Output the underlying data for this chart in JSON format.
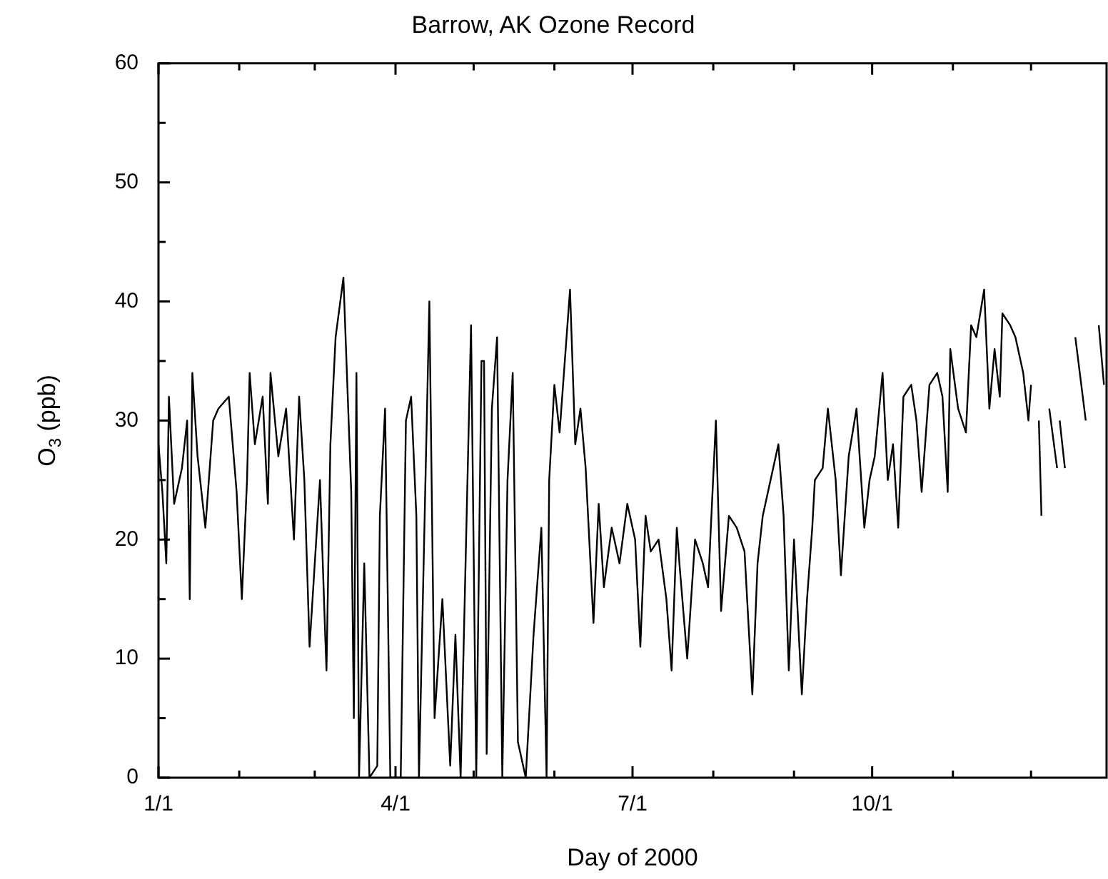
{
  "chart_data": {
    "type": "line",
    "title": "Barrow, AK Ozone Record",
    "xlabel": "Day of 2000",
    "ylabel": "O$_{3}$ (ppb)",
    "xlim": [
      "2000-01-01",
      "2000-12-30"
    ],
    "xticks": [
      {
        "value": "2000-01-01",
        "label": "1/1"
      },
      {
        "value": "2000-02-01",
        "label": null
      },
      {
        "value": "2000-03-01",
        "label": null
      },
      {
        "value": "2000-04-01",
        "label": "4/1"
      },
      {
        "value": "2000-05-01",
        "label": null
      },
      {
        "value": "2000-06-01",
        "label": null
      },
      {
        "value": "2000-07-01",
        "label": "7/1"
      },
      {
        "value": "2000-08-01",
        "label": null
      },
      {
        "value": "2000-09-01",
        "label": null
      },
      {
        "value": "2000-10-01",
        "label": "10/1"
      },
      {
        "value": "2000-11-01",
        "label": null
      },
      {
        "value": "2000-12-01",
        "label": null
      }
    ],
    "ylim": [
      0,
      60
    ],
    "yticks": [
      0,
      {
        "value": 5,
        "label": null
      },
      10,
      {
        "value": 15,
        "label": null
      },
      20,
      {
        "value": 25,
        "label": null
      },
      30,
      {
        "value": 35,
        "label": null
      },
      40,
      {
        "value": 45,
        "label": null
      },
      50,
      {
        "value": 55,
        "label": null
      },
      60
    ],
    "grid": false,
    "legend": false,
    "marker": "none",
    "line_style": "solid",
    "series": [
      {
        "color": "#000000",
        "x": [
          "2000-01-01",
          "2000-01-02T12:00",
          "2000-01-04",
          "2000-01-05",
          "2000-01-07",
          "2000-01-10",
          "2000-01-12",
          "2000-01-13",
          "2000-01-14",
          "2000-01-16",
          "2000-01-19",
          "2000-01-22",
          "2000-01-24",
          "2000-01-28",
          "2000-01-31",
          "2000-02-02",
          "2000-02-04",
          "2000-02-05",
          "2000-02-07",
          "2000-02-10",
          "2000-02-12",
          "2000-02-13",
          "2000-02-16",
          "2000-02-19",
          "2000-02-22",
          "2000-02-24",
          "2000-02-26",
          "2000-02-28",
          "2000-03-01",
          "2000-03-03",
          "2000-03-05",
          "2000-03-05T12:00",
          "2000-03-07",
          "2000-03-09",
          "2000-03-12",
          "2000-03-13",
          "2000-03-15",
          "2000-03-16",
          "2000-03-17",
          "2000-03-18",
          "2000-03-20",
          "2000-03-22",
          "2000-03-25",
          "2000-03-26",
          "2000-03-28",
          "2000-03-30",
          "2000-04-03",
          "2000-04-05",
          "2000-04-07",
          "2000-04-09",
          "2000-04-10",
          "2000-04-13",
          "2000-04-14",
          "2000-04-16",
          "2000-04-19",
          "2000-04-22",
          "2000-04-24",
          "2000-04-26",
          "2000-04-30",
          "2000-05-02",
          "2000-05-04",
          "2000-05-05",
          "2000-05-06",
          "2000-05-08",
          "2000-05-10",
          "2000-05-12",
          "2000-05-14",
          "2000-05-16",
          "2000-05-18",
          "2000-05-21",
          "2000-05-24",
          "2000-05-27",
          "2000-05-29",
          "2000-05-30",
          "2000-06-01",
          "2000-06-03",
          "2000-06-06",
          "2000-06-07",
          "2000-06-09",
          "2000-06-11",
          "2000-06-13",
          "2000-06-16",
          "2000-06-18",
          "2000-06-20",
          "2000-06-23",
          "2000-06-26",
          "2000-06-29",
          "2000-07-02",
          "2000-07-04",
          "2000-07-06",
          "2000-07-08",
          "2000-07-11",
          "2000-07-14",
          "2000-07-16",
          "2000-07-18",
          "2000-07-19",
          "2000-07-22",
          "2000-07-25",
          "2000-07-28",
          "2000-07-30",
          "2000-08-02",
          "2000-08-04",
          "2000-08-07",
          "2000-08-10",
          "2000-08-13",
          "2000-08-16",
          "2000-08-18",
          "2000-08-20",
          "2000-08-23",
          "2000-08-26",
          "2000-08-28",
          "2000-08-30",
          "2000-09-01",
          "2000-09-04",
          "2000-09-06",
          "2000-09-08",
          "2000-09-09",
          "2000-09-12",
          "2000-09-14",
          "2000-09-17",
          "2000-09-19",
          "2000-09-22",
          "2000-09-25",
          "2000-09-28",
          "2000-09-30",
          "2000-10-02",
          "2000-10-05",
          "2000-10-07",
          "2000-10-09",
          "2000-10-11",
          "2000-10-13",
          "2000-10-16",
          "2000-10-18",
          "2000-10-20",
          "2000-10-23",
          "2000-10-26",
          "2000-10-28",
          "2000-10-30",
          "2000-10-31",
          "2000-11-03",
          "2000-11-06",
          "2000-11-08",
          "2000-11-10",
          "2000-11-13",
          "2000-11-15",
          "2000-11-17",
          "2000-11-19",
          "2000-11-20",
          "2000-11-23",
          "2000-11-25",
          "2000-11-28",
          "2000-11-30",
          "2000-12-01",
          "2000-12-02T12:00",
          "2000-12-04",
          "2000-12-05",
          "2000-12-06T12:00",
          "2000-12-08",
          "2000-12-11",
          "2000-12-11T12:00",
          "2000-12-12",
          "2000-12-14",
          "2000-12-15T12:00",
          "2000-12-18",
          "2000-12-22",
          "2000-12-24",
          "2000-12-27",
          "2000-12-29"
        ],
        "values": [
          28,
          24,
          18,
          32,
          23,
          26,
          30,
          15,
          34,
          27,
          21,
          30,
          31,
          32,
          24,
          15,
          25,
          34,
          28,
          32,
          23,
          34,
          27,
          31,
          20,
          32,
          25,
          11,
          18,
          25,
          12,
          9,
          28,
          37,
          42,
          36,
          24,
          5,
          34,
          0,
          18,
          0,
          1,
          22,
          31,
          0,
          0,
          30,
          32,
          22,
          0,
          30,
          40,
          5,
          15,
          1,
          12,
          0,
          38,
          0,
          35,
          35,
          2,
          31,
          37,
          0,
          25,
          34,
          3,
          0,
          12,
          21,
          0,
          25,
          33,
          29,
          38,
          41,
          28,
          31,
          26,
          13,
          23,
          16,
          21,
          18,
          23,
          20,
          11,
          22,
          19,
          20,
          15,
          9,
          21,
          18,
          10,
          20,
          18,
          16,
          30,
          14,
          22,
          21,
          19,
          7,
          18,
          22,
          25,
          28,
          22,
          9,
          20,
          7,
          15,
          21,
          25,
          26,
          31,
          25,
          17,
          27,
          31,
          21,
          25,
          27,
          34,
          25,
          28,
          21,
          32,
          33,
          30,
          24,
          33,
          34,
          32,
          24,
          36,
          31,
          29,
          38,
          37,
          41,
          31,
          36,
          32,
          39,
          38,
          37,
          34,
          30,
          33,
          null,
          30,
          22,
          null,
          31,
          26,
          null,
          30,
          26,
          null,
          37,
          30,
          null,
          38,
          33
        ]
      }
    ]
  }
}
